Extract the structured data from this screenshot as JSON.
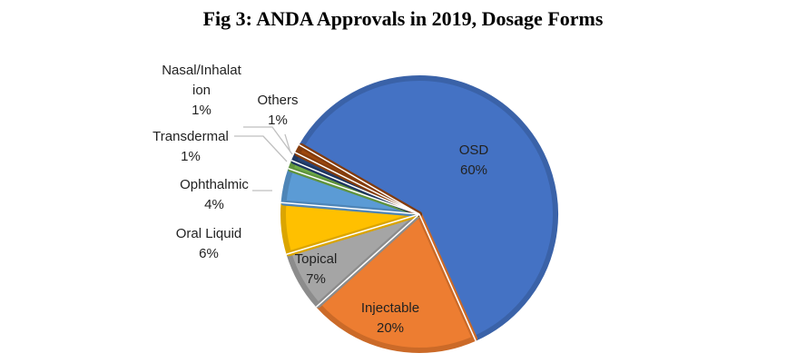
{
  "chart_data": {
    "type": "pie",
    "title": "Fig 3: ANDA Approvals in 2019, Dosage Forms",
    "slices": [
      {
        "label": [
          "OSD"
        ],
        "pct_label": "60%",
        "value": 60,
        "color": "#4472C4",
        "edge": "#3A62A8"
      },
      {
        "label": [
          "Injectable"
        ],
        "pct_label": "20%",
        "value": 20,
        "color": "#ED7D31",
        "edge": "#CB6A28"
      },
      {
        "label": [
          "Topical"
        ],
        "pct_label": "7%",
        "value": 7,
        "color": "#A5A5A5",
        "edge": "#8C8C8C"
      },
      {
        "label": [
          "Oral Liquid"
        ],
        "pct_label": "6%",
        "value": 6,
        "color": "#FFC000",
        "edge": "#DBA500"
      },
      {
        "label": [
          "Ophthalmic"
        ],
        "pct_label": "4%",
        "value": 4,
        "color": "#5B9BD5",
        "edge": "#4E85B7"
      },
      {
        "label": [
          "Transdermal"
        ],
        "pct_label": "1%",
        "value": 1,
        "color": "#70AD47",
        "edge": "#60943D"
      },
      {
        "label": [
          "Nasal/Inhalat",
          "ion"
        ],
        "pct_label": "1%",
        "value": 1,
        "color": "#264478",
        "edge": "#1E3660"
      },
      {
        "label": [
          "Others"
        ],
        "pct_label": "1%",
        "value": 1,
        "color": "#9E480E",
        "edge": "#843C0C"
      }
    ],
    "start_angle_deg": 300,
    "direction": "clockwise",
    "legend": "none"
  }
}
